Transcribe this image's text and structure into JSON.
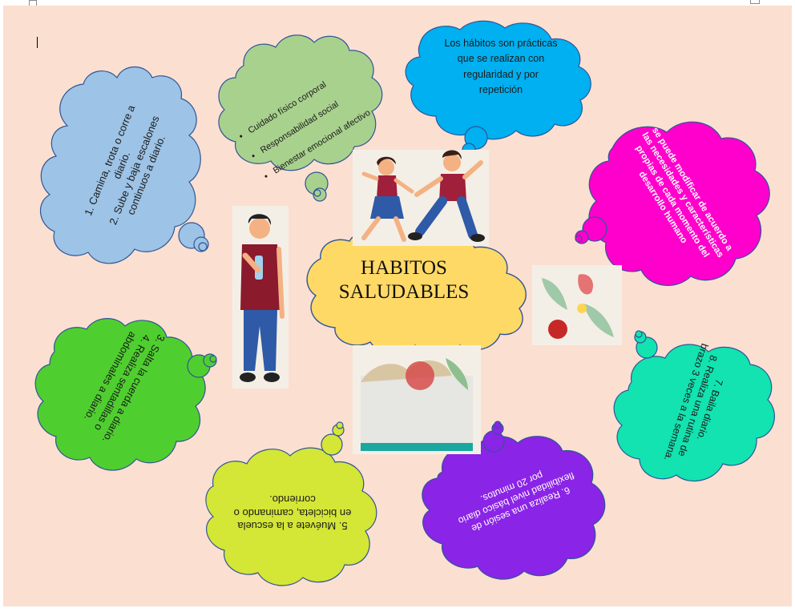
{
  "title": {
    "line1": "HABITOS",
    "line2": "SALUDABLES"
  },
  "definition": "Los hábitos son prácticas que se realizan con regularidad y por repetición",
  "benefits": [
    "Cuidado físico corporal",
    "Responsabilidad social",
    "Bienestar emocional afectivo"
  ],
  "habits": {
    "h12": "1.  Camina, trota o corre a diario.\n2. Sube y baja escalones continuos a diario.",
    "h34": "3. Salta la cuerda a diario.\n4. Realiza sentadillas o abdominales a diario.",
    "h5": "5. Muévete a la escuela en bicicleta, caminando o corriendo.",
    "h6": "6. Realiza una sesión de flexibilidad nivel básico diario por 20 minutos.",
    "h78": "7. Baila diario.\n8. Realiza una rutina de brazo 3 veces a la semana."
  },
  "adaptation": "se puede modificar de acuerdo a las necesidades y características propias de cada momento del desarrollo humano",
  "colors": {
    "background": "#fbdfd1",
    "center_cloud": "#ffd966",
    "blue_cloud": "#9dc3e6",
    "sage_cloud": "#a9d18e",
    "cyan_cloud": "#00b0f0",
    "magenta_cloud": "#ff00cc",
    "green_cloud": "#4fcf2f",
    "yellow_cloud": "#d4e636",
    "purple_cloud": "#8a24e6",
    "teal_cloud": "#12e3b0",
    "cloud_outline": "#2f5597"
  }
}
